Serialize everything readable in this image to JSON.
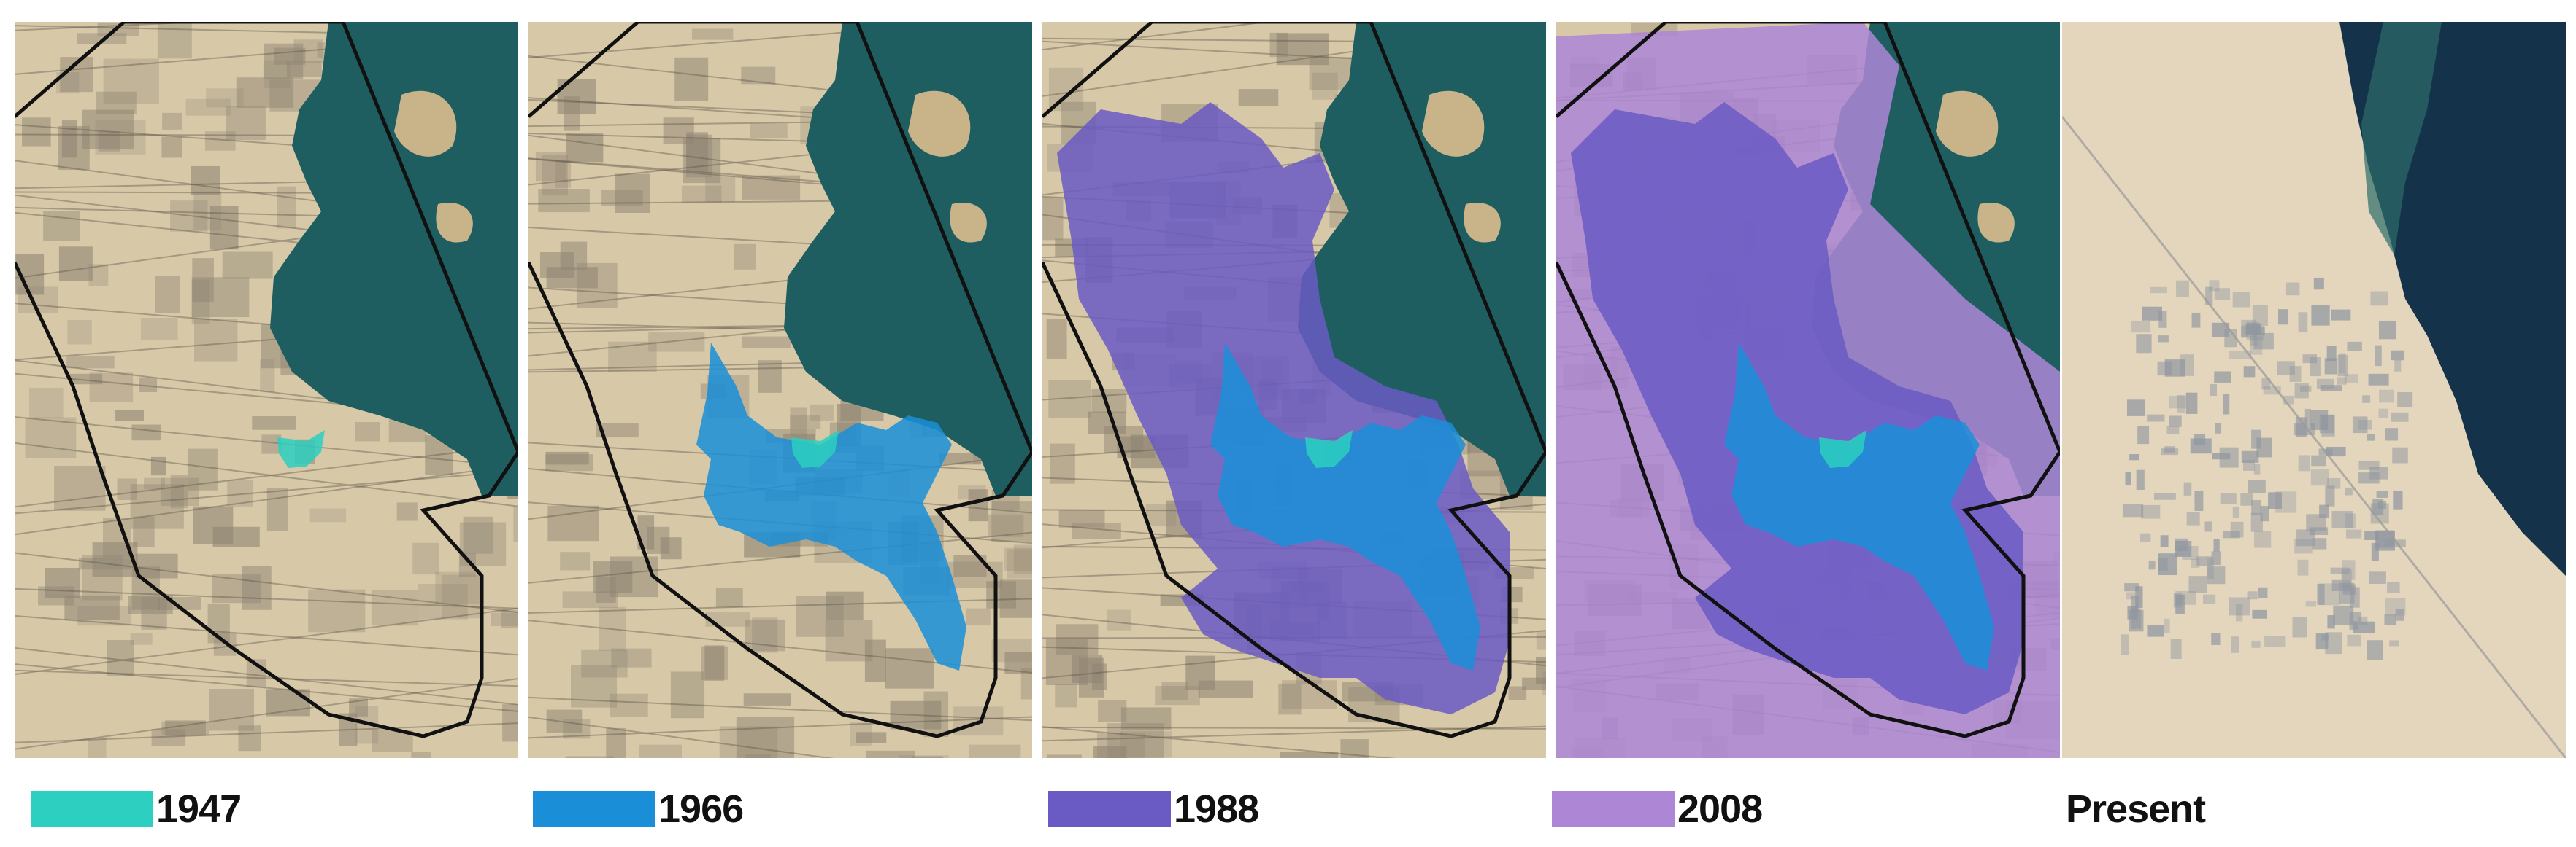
{
  "panels": [
    {
      "id": "1947",
      "layers": [
        "1947"
      ]
    },
    {
      "id": "1966",
      "layers": [
        "1966",
        "1947"
      ]
    },
    {
      "id": "1988",
      "layers": [
        "1988",
        "1966",
        "1947"
      ]
    },
    {
      "id": "2008",
      "layers": [
        "2008",
        "1988",
        "1966",
        "1947"
      ]
    },
    {
      "id": "Present",
      "layers": []
    }
  ],
  "legend": [
    {
      "label": "1947",
      "color": "#2ccfc0"
    },
    {
      "label": "1966",
      "color": "#1a8fd8"
    },
    {
      "label": "1988",
      "color": "#6a5bc4"
    },
    {
      "label": "2008",
      "color": "#ad86d6"
    },
    {
      "label": "Present",
      "color": null
    }
  ],
  "colors": {
    "sea": "#1f5e60",
    "deep_sea": "#14334a",
    "land": "#d7c8a8",
    "urban": "#8e8472",
    "boundary": "#111111"
  }
}
